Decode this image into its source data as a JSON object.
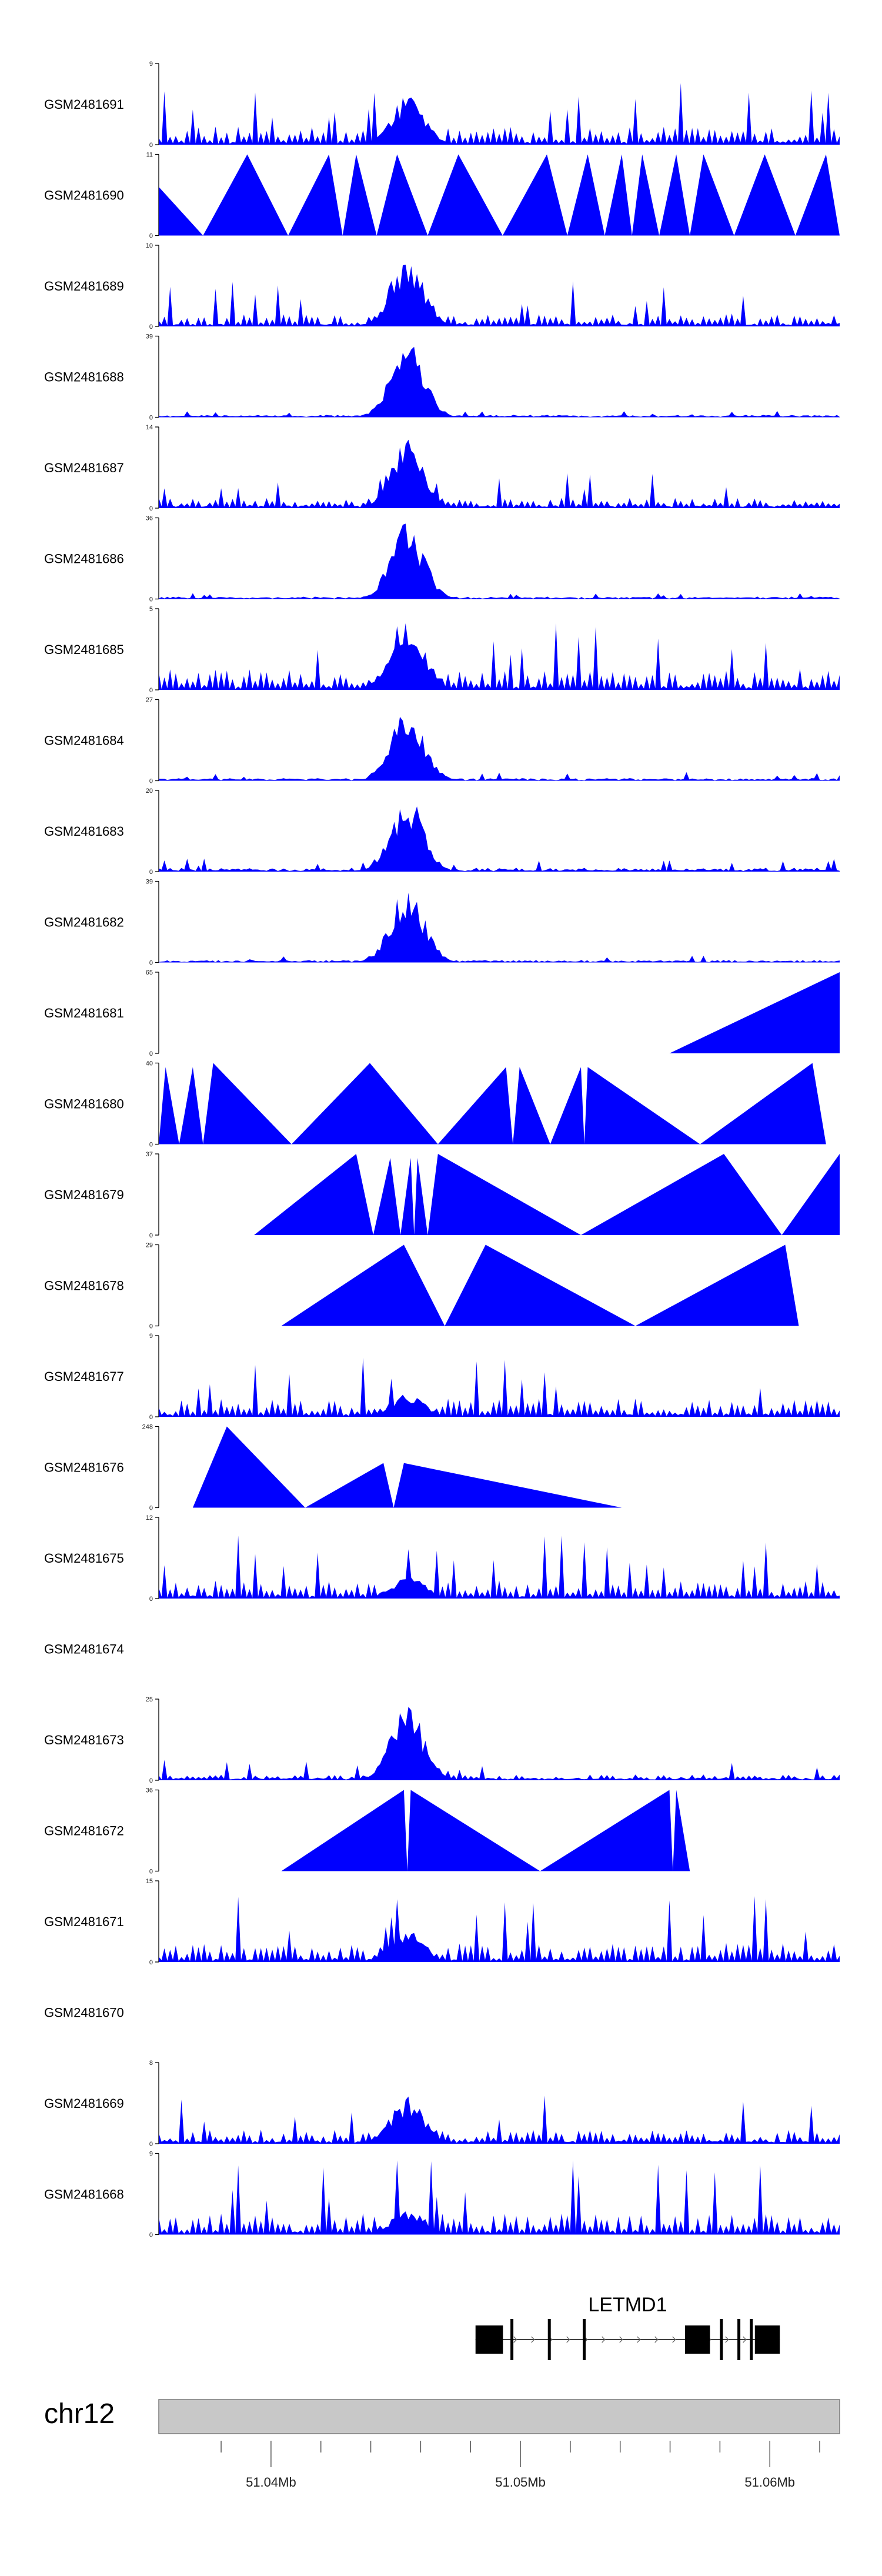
{
  "chart_data": {
    "type": "area",
    "title": "",
    "xlabel": "",
    "ylabel": "",
    "chromosome": "chr12",
    "xlim_mb": [
      51.0355,
      51.0628
    ],
    "colors": {
      "signal": "#0000ff",
      "ideogram": "#c8c8c8",
      "gene": "#000000"
    },
    "x_ticks": [
      {
        "pos": 51.04,
        "label": "51.04Mb"
      },
      {
        "pos": 51.05,
        "label": "51.05Mb"
      },
      {
        "pos": 51.06,
        "label": "51.06Mb"
      }
    ],
    "x_minor_ticks": [
      51.038,
      51.042,
      51.044,
      51.046,
      51.048,
      51.052,
      51.054,
      51.056,
      51.058,
      51.062
    ],
    "gene": {
      "name": "LETMD1",
      "start_mb": 51.0482,
      "end_mb": 51.0604,
      "strand": "+",
      "exons_mb": [
        [
          51.0482,
          51.0493
        ],
        [
          51.0496,
          51.0497
        ],
        [
          51.0511,
          51.0512
        ],
        [
          51.0525,
          51.0526
        ],
        [
          51.0566,
          51.0576
        ],
        [
          51.058,
          51.0581
        ],
        [
          51.0587,
          51.0588
        ],
        [
          51.0592,
          51.0593
        ],
        [
          51.0594,
          51.0604
        ]
      ]
    },
    "tracks": [
      {
        "name": "GSM2481691",
        "ymax": 9,
        "ymin": 0,
        "style": "dense",
        "peak": 0.6,
        "bg": 0.28,
        "seed": 11
      },
      {
        "name": "GSM2481690",
        "ymax": 11,
        "ymin": 0,
        "style": "sparse",
        "peaks": [
          [
            0.0,
            0.6
          ],
          [
            0.13,
            1.0
          ],
          [
            0.25,
            1.0
          ],
          [
            0.29,
            1.0
          ],
          [
            0.35,
            1.0
          ],
          [
            0.44,
            1.0
          ],
          [
            0.57,
            1.0
          ],
          [
            0.63,
            1.0
          ],
          [
            0.68,
            1.0
          ],
          [
            0.71,
            1.0
          ],
          [
            0.76,
            1.0
          ],
          [
            0.8,
            1.0
          ],
          [
            0.89,
            1.0
          ],
          [
            0.98,
            1.0
          ]
        ],
        "end": 1.0
      },
      {
        "name": "GSM2481689",
        "ymax": 10,
        "ymin": 0,
        "style": "dense",
        "peak": 0.9,
        "bg": 0.2,
        "seed": 23
      },
      {
        "name": "GSM2481688",
        "ymax": 39,
        "ymin": 0,
        "style": "dense",
        "peak": 0.95,
        "bg": 0.03,
        "seed": 37
      },
      {
        "name": "GSM2481687",
        "ymax": 14,
        "ymin": 0,
        "style": "dense",
        "peak": 0.85,
        "bg": 0.16,
        "seed": 41
      },
      {
        "name": "GSM2481686",
        "ymax": 36,
        "ymin": 0,
        "style": "dense",
        "peak": 0.95,
        "bg": 0.03,
        "seed": 53
      },
      {
        "name": "GSM2481685",
        "ymax": 5,
        "ymin": 0,
        "style": "dense",
        "peak": 0.95,
        "bg": 0.33,
        "seed": 61
      },
      {
        "name": "GSM2481684",
        "ymax": 27,
        "ymin": 0,
        "style": "dense",
        "peak": 0.95,
        "bg": 0.04,
        "seed": 71
      },
      {
        "name": "GSM2481683",
        "ymax": 20,
        "ymin": 0,
        "style": "dense",
        "peak": 0.95,
        "bg": 0.06,
        "seed": 83
      },
      {
        "name": "GSM2481682",
        "ymax": 39,
        "ymin": 0,
        "style": "dense",
        "peak": 0.95,
        "bg": 0.03,
        "seed": 97
      },
      {
        "name": "GSM2481681",
        "ymax": 65,
        "ymin": 0,
        "style": "sparse",
        "peaks": [
          [
            0.5,
            0.0
          ],
          [
            1.0,
            1.0
          ]
        ],
        "end": 0.0,
        "start": 0.5,
        "tail": 1.0
      },
      {
        "name": "GSM2481680",
        "ymax": 40,
        "ymin": 0,
        "style": "sparse",
        "peaks": [
          [
            0.01,
            0.95
          ],
          [
            0.05,
            0.95
          ],
          [
            0.08,
            1.0
          ],
          [
            0.31,
            1.0
          ],
          [
            0.51,
            0.95
          ],
          [
            0.53,
            0.95
          ],
          [
            0.62,
            0.95
          ],
          [
            0.63,
            0.95
          ],
          [
            0.96,
            1.0
          ]
        ],
        "end": 0.98
      },
      {
        "name": "GSM2481679",
        "ymax": 37,
        "ymin": 0,
        "style": "sparse",
        "peaks": [
          [
            0.29,
            1.0
          ],
          [
            0.34,
            0.95
          ],
          [
            0.37,
            0.95
          ],
          [
            0.38,
            0.95
          ],
          [
            0.41,
            1.0
          ],
          [
            0.83,
            1.0
          ],
          [
            1.0,
            1.0
          ]
        ],
        "end": 1.0,
        "start": 0.14
      },
      {
        "name": "GSM2481678",
        "ymax": 29,
        "ymin": 0,
        "style": "sparse",
        "peaks": [
          [
            0.36,
            1.0
          ],
          [
            0.48,
            1.0
          ],
          [
            0.92,
            1.0
          ]
        ],
        "end": 0.96,
        "start": 0.18
      },
      {
        "name": "GSM2481677",
        "ymax": 9,
        "ymin": 0,
        "style": "dense",
        "peak": 0.3,
        "bg": 0.28,
        "seed": 101
      },
      {
        "name": "GSM2481676",
        "ymax": 248,
        "ymin": 0,
        "style": "sparse",
        "peaks": [
          [
            0.1,
            1.0
          ],
          [
            0.33,
            0.55
          ],
          [
            0.36,
            0.55
          ]
        ],
        "end": 0.0,
        "start": 0.05,
        "tail": 0.68
      },
      {
        "name": "GSM2481675",
        "ymax": 12,
        "ymin": 0,
        "style": "dense",
        "peak": 0.3,
        "bg": 0.28,
        "seed": 113
      },
      {
        "name": "GSM2481674",
        "ymax": null,
        "ymin": null,
        "style": "empty"
      },
      {
        "name": "GSM2481673",
        "ymax": 25,
        "ymin": 0,
        "style": "dense",
        "peak": 0.95,
        "bg": 0.09,
        "seed": 127
      },
      {
        "name": "GSM2481672",
        "ymax": 36,
        "ymin": 0,
        "style": "sparse",
        "peaks": [
          [
            0.36,
            1.0
          ],
          [
            0.37,
            1.0
          ],
          [
            0.75,
            1.0
          ],
          [
            0.76,
            1.0
          ]
        ],
        "end": 0.88,
        "start": 0.18
      },
      {
        "name": "GSM2481671",
        "ymax": 15,
        "ymin": 0,
        "style": "dense",
        "peak": 0.4,
        "bg": 0.3,
        "seed": 131
      },
      {
        "name": "GSM2481670",
        "ymax": null,
        "ymin": null,
        "style": "empty"
      },
      {
        "name": "GSM2481669",
        "ymax": 8,
        "ymin": 0,
        "style": "dense",
        "peak": 0.6,
        "bg": 0.22,
        "seed": 137
      },
      {
        "name": "GSM2481668",
        "ymax": 9,
        "ymin": 0,
        "style": "dense",
        "peak": 0.3,
        "bg": 0.33,
        "seed": 149
      }
    ]
  }
}
